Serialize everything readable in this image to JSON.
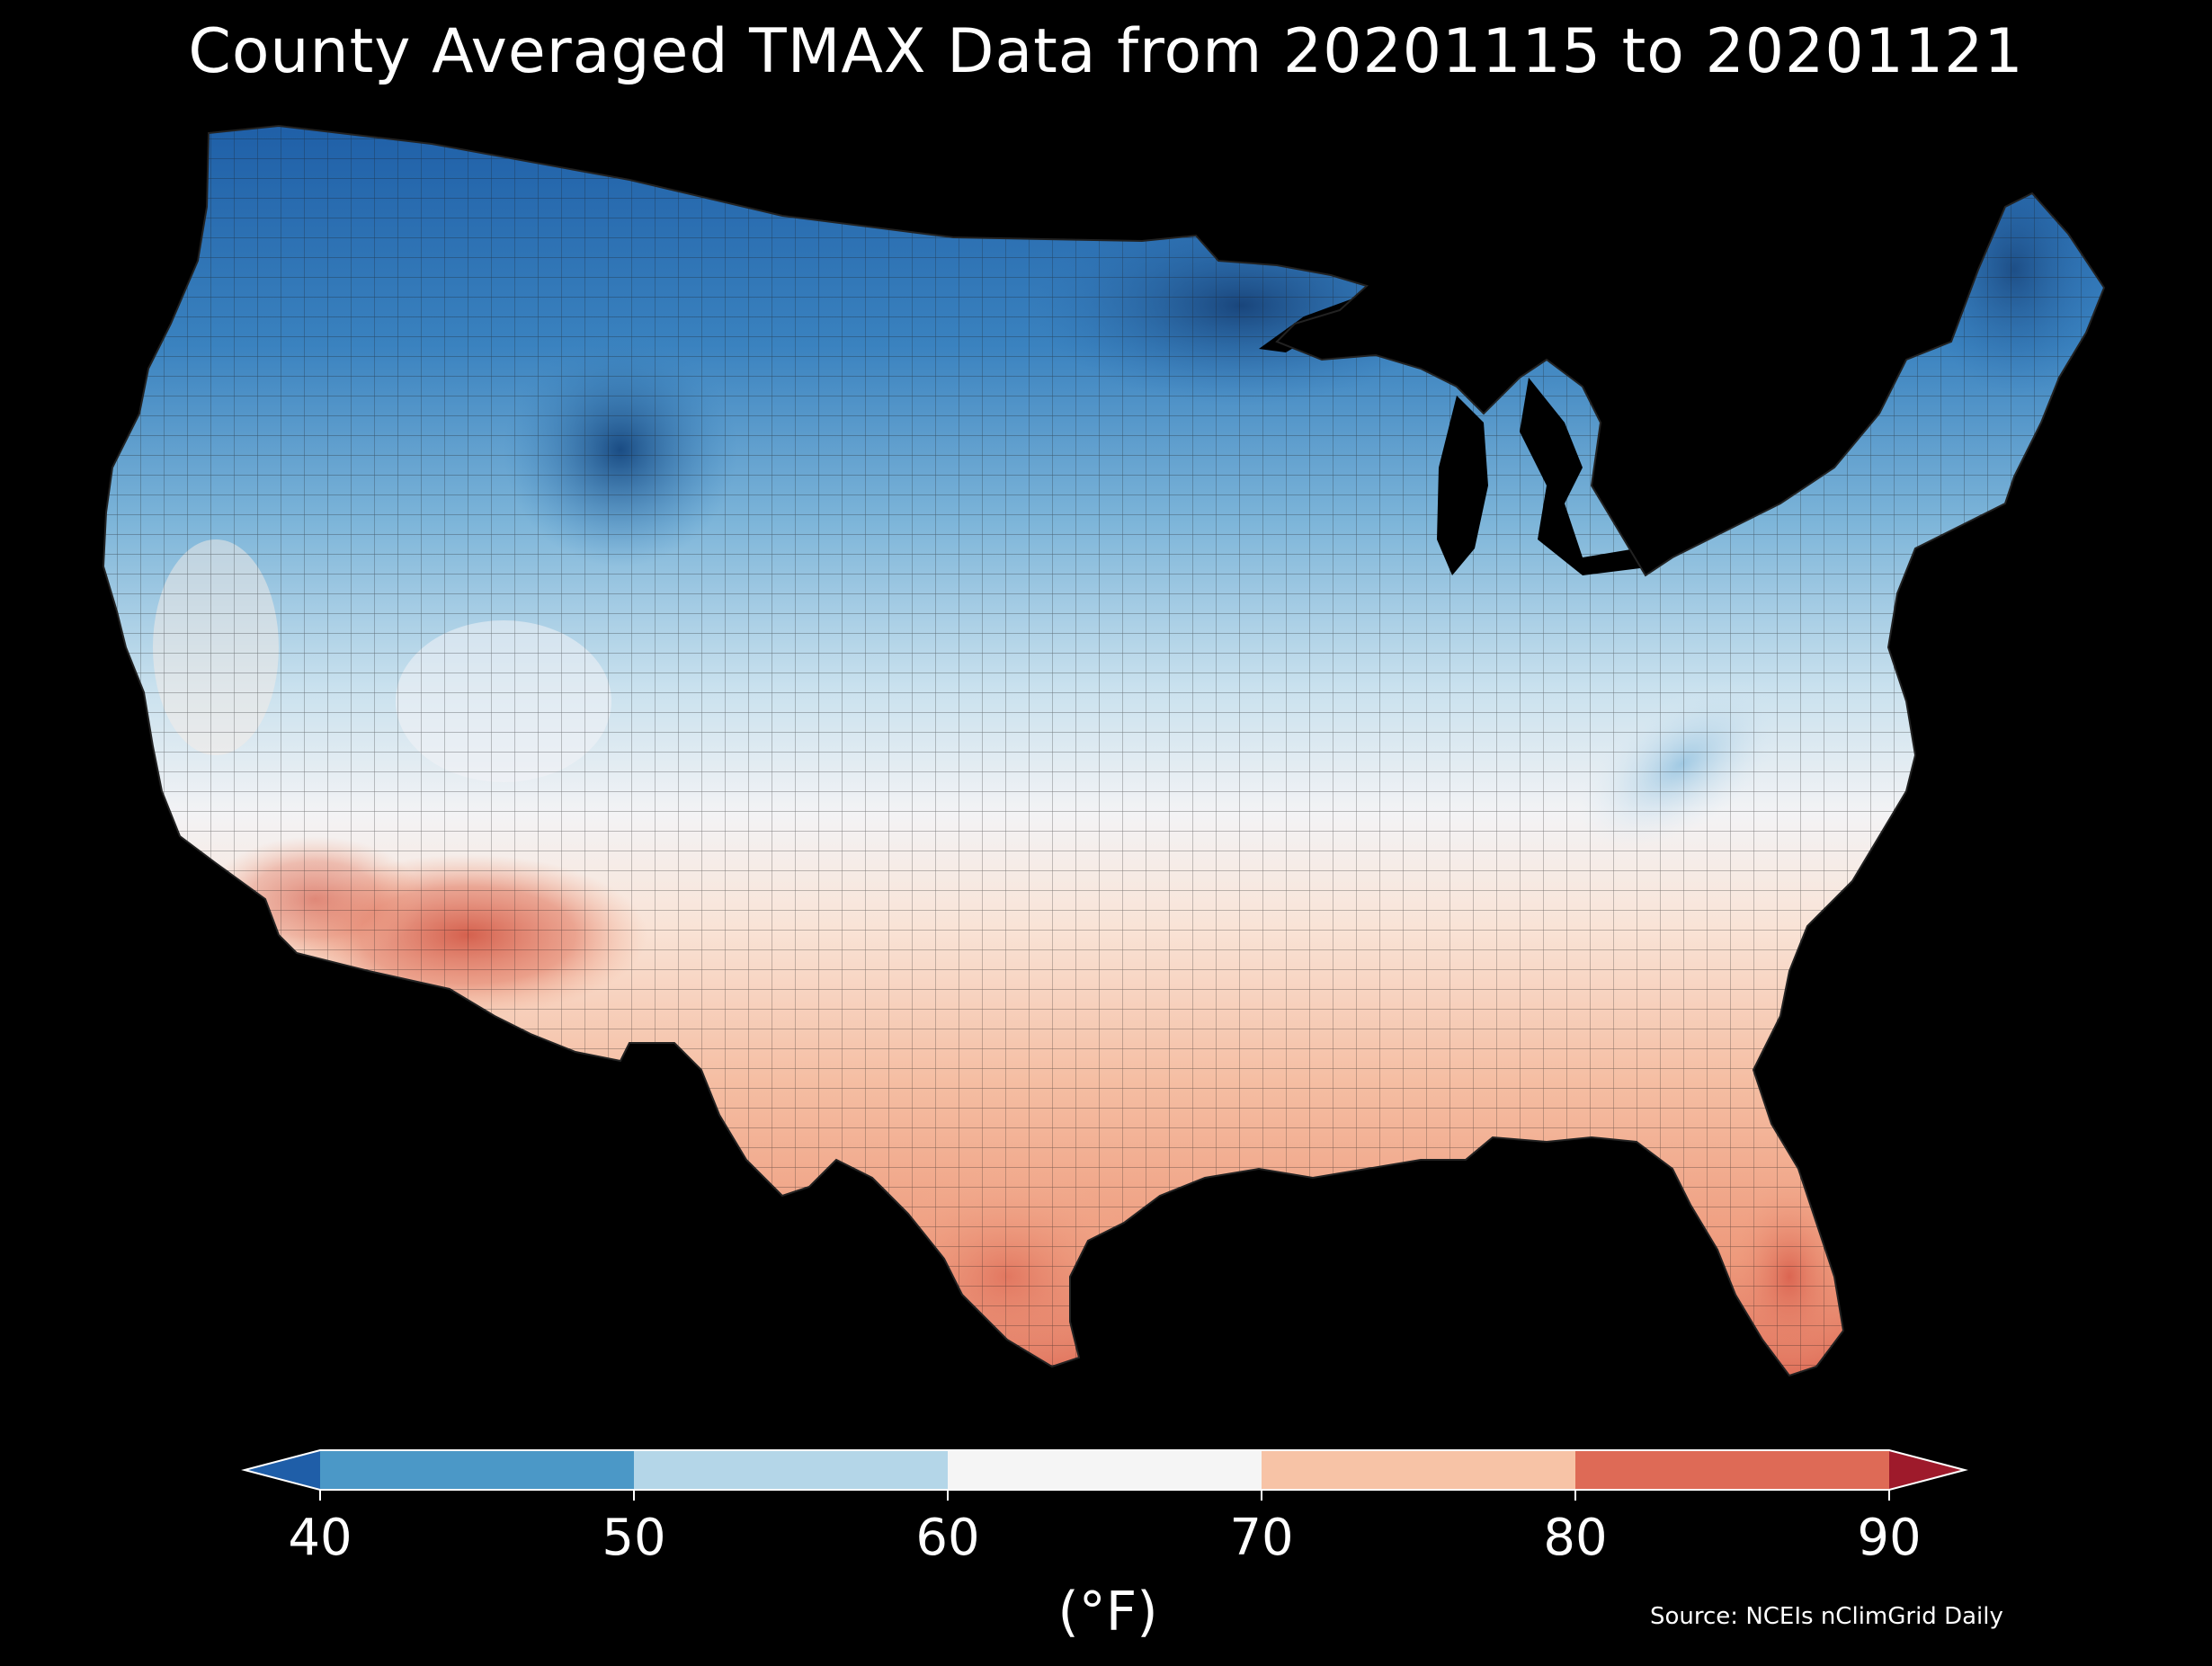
{
  "title": "County Averaged TMAX Data from 20201115 to 20201121",
  "source": "Source: NCEIs nClimGrid Daily",
  "colorbar": {
    "unit_label": "(°F)",
    "ticks": [
      "40",
      "50",
      "60",
      "70",
      "80",
      "90"
    ],
    "bins": [
      {
        "range": "<40",
        "color": "#1f5ea8"
      },
      {
        "range": "40-50",
        "color": "#4b98c7"
      },
      {
        "range": "50-60",
        "color": "#b4d6e8"
      },
      {
        "range": "60-70",
        "color": "#f5f5f5"
      },
      {
        "range": "70-80",
        "color": "#f7c3a6"
      },
      {
        "range": "80-90",
        "color": "#de6a56"
      },
      {
        "range": ">90",
        "color": "#9e1a2b"
      }
    ]
  },
  "map": {
    "region": "contiguous United States",
    "background": "#000000",
    "gradient_colors": {
      "north_deep": "#164b8a",
      "north": "#2f74b4",
      "north_mid": "#6aa8d2",
      "central": "#c8e0ee",
      "middle": "#f4f4f6",
      "south_light": "#f8d5c2",
      "south": "#f1a585",
      "southwest_hot": "#d7614f"
    }
  }
}
